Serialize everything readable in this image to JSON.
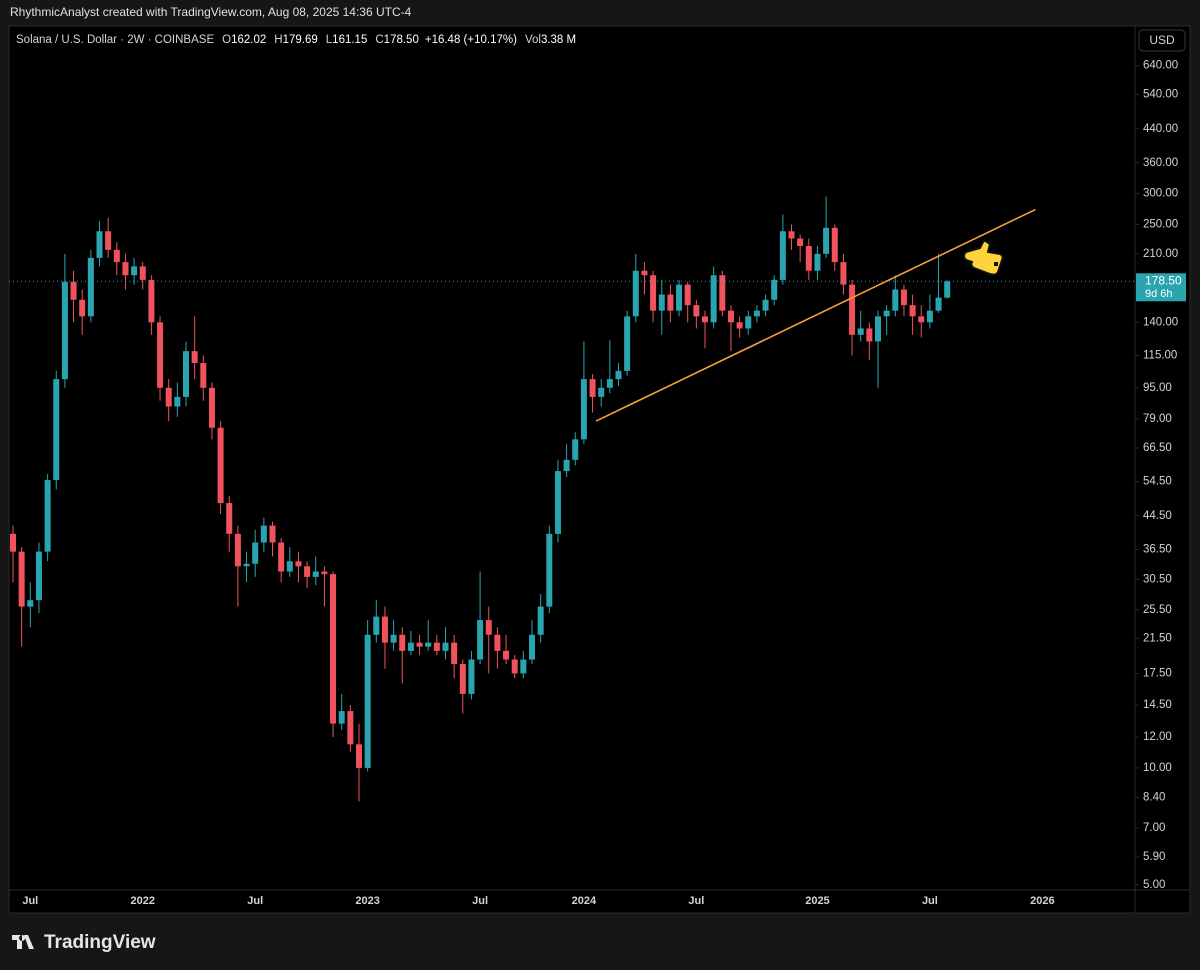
{
  "header": "RhythmicAnalyst created with TradingView.com, Aug 08, 2025 14:36 UTC-4",
  "brand": "TradingView",
  "currency_button": "USD",
  "chart_data": {
    "type": "candlestick",
    "title": "Solana / U.S. Dollar · 2W · COINBASE",
    "legend_keys": [
      "O",
      "H",
      "L",
      "C",
      "Vol"
    ],
    "change": "+16.48 (+10.17%)",
    "volume": "3.38 M",
    "last_price_label": "178.50",
    "countdown": "9d 6h",
    "up_color": "#2aa5b0",
    "down_color": "#f0525e",
    "log_scale": true,
    "grid": false,
    "ylim": [
      4.26,
      800
    ],
    "yticks": [
      {
        "value": 640,
        "label": "640.00"
      },
      {
        "value": 540,
        "label": "540.00"
      },
      {
        "value": 440,
        "label": "440.00"
      },
      {
        "value": 360,
        "label": "360.00"
      },
      {
        "value": 300,
        "label": "300.00"
      },
      {
        "value": 250,
        "label": "250.00"
      },
      {
        "value": 210,
        "label": "210.00"
      },
      {
        "value": 140,
        "label": "140.00"
      },
      {
        "value": 115,
        "label": "115.00"
      },
      {
        "value": 95,
        "label": "95.00"
      },
      {
        "value": 79,
        "label": "79.00"
      },
      {
        "value": 66.5,
        "label": "66.50"
      },
      {
        "value": 54.5,
        "label": "54.50"
      },
      {
        "value": 44.5,
        "label": "44.50"
      },
      {
        "value": 36.5,
        "label": "36.50"
      },
      {
        "value": 30.5,
        "label": "30.50"
      },
      {
        "value": 25.5,
        "label": "25.50"
      },
      {
        "value": 21.5,
        "label": "21.50"
      },
      {
        "value": 17.5,
        "label": "17.50"
      },
      {
        "value": 14.5,
        "label": "14.50"
      },
      {
        "value": 12,
        "label": "12.00"
      },
      {
        "value": 10,
        "label": "10.00"
      },
      {
        "value": 8.4,
        "label": "8.40"
      },
      {
        "value": 7,
        "label": "7.00"
      },
      {
        "value": 5.9,
        "label": "5.90"
      },
      {
        "value": 5,
        "label": "5.00"
      }
    ],
    "categories": [
      null,
      null,
      "Jul",
      null,
      null,
      null,
      null,
      null,
      null,
      null,
      null,
      null,
      null,
      null,
      null,
      "2022",
      null,
      null,
      null,
      null,
      null,
      null,
      null,
      null,
      null,
      null,
      null,
      null,
      "Jul",
      null,
      null,
      null,
      null,
      null,
      null,
      null,
      null,
      null,
      null,
      null,
      null,
      "2023",
      null,
      null,
      null,
      null,
      null,
      null,
      null,
      null,
      null,
      null,
      null,
      null,
      "Jul",
      null,
      null,
      null,
      null,
      null,
      null,
      null,
      null,
      null,
      null,
      null,
      "2024",
      null,
      null,
      null,
      null,
      null,
      null,
      null,
      null,
      null,
      null,
      null,
      null,
      "Jul",
      null,
      null,
      null,
      null,
      null,
      null,
      null,
      null,
      null,
      null,
      null,
      null,
      null,
      "2025",
      null,
      null,
      null,
      null,
      null,
      null,
      null,
      null,
      null,
      null,
      null,
      null,
      "Jul",
      null,
      null,
      null,
      null,
      null,
      null,
      null,
      null,
      null,
      null,
      null,
      null,
      "2026"
    ],
    "open": [
      40,
      36,
      26,
      27,
      36,
      55,
      100,
      178,
      160,
      145,
      205,
      240,
      215,
      200,
      185,
      195,
      180,
      140,
      95,
      85,
      90,
      118,
      110,
      95,
      75,
      48,
      40,
      33,
      33.5,
      38,
      42,
      38,
      32,
      34,
      33,
      31,
      32,
      31.5,
      13,
      14,
      11.5,
      10,
      22,
      24.5,
      21,
      22,
      20,
      21,
      20.5,
      21,
      20,
      21,
      18.5,
      15.5,
      19,
      24,
      22,
      20,
      19,
      17.5,
      19,
      22,
      26,
      40,
      58,
      62,
      70,
      100,
      90,
      95,
      100,
      105,
      145,
      190,
      185,
      150,
      165,
      150,
      175,
      155,
      145,
      140,
      185,
      150,
      140,
      135,
      145,
      150,
      160,
      180,
      240,
      230,
      220,
      190,
      210,
      245,
      200,
      175,
      130,
      135,
      125,
      145,
      150,
      170,
      155,
      145,
      140,
      150,
      162.02,
      null,
      null,
      null,
      null,
      null,
      null,
      null,
      null,
      null,
      null,
      null
    ],
    "high": [
      42,
      37,
      30,
      38,
      57,
      105,
      210,
      190,
      170,
      215,
      255,
      260,
      225,
      210,
      205,
      200,
      185,
      145,
      100,
      98,
      125,
      145,
      115,
      98,
      78,
      50,
      42,
      36,
      41,
      44,
      43,
      39,
      37,
      36,
      34,
      35,
      33,
      32,
      15.5,
      14.5,
      13,
      24,
      27,
      26,
      24,
      23,
      22.5,
      22,
      24,
      22,
      23,
      22,
      19,
      20,
      32,
      26,
      23,
      22,
      19.5,
      20,
      24,
      28,
      42,
      62,
      68,
      73,
      125,
      103,
      100,
      126,
      110,
      150,
      210,
      200,
      190,
      180,
      175,
      180,
      178,
      160,
      150,
      195,
      190,
      155,
      145,
      150,
      155,
      165,
      185,
      265,
      250,
      235,
      230,
      220,
      295,
      250,
      210,
      180,
      150,
      140,
      150,
      155,
      185,
      175,
      165,
      155,
      165,
      210,
      179.69,
      null,
      null,
      null,
      null,
      null,
      null,
      null,
      null,
      null,
      null,
      null
    ],
    "low": [
      30,
      20.5,
      23,
      25,
      34,
      52,
      95,
      140,
      130,
      140,
      195,
      205,
      185,
      170,
      175,
      170,
      130,
      88,
      78,
      80,
      85,
      100,
      88,
      70,
      45,
      36,
      26,
      30,
      31,
      36,
      35,
      30,
      31,
      30,
      29,
      29.5,
      26,
      12,
      12.5,
      11,
      8.2,
      9.8,
      21,
      18,
      20,
      16.5,
      19.5,
      19.5,
      20,
      19.5,
      19,
      17,
      13.8,
      15,
      18.5,
      17.5,
      18,
      18.5,
      17,
      17,
      18.5,
      21,
      25,
      38,
      56,
      60,
      68,
      82,
      85,
      92,
      96,
      102,
      140,
      165,
      140,
      130,
      140,
      145,
      140,
      135,
      120,
      135,
      145,
      118,
      128,
      130,
      140,
      145,
      155,
      175,
      215,
      200,
      180,
      180,
      205,
      190,
      165,
      115,
      125,
      112,
      95,
      130,
      145,
      145,
      130,
      128,
      135,
      148,
      161.15,
      null,
      null,
      null,
      null,
      null,
      null,
      null,
      null,
      null,
      null,
      null
    ],
    "close": [
      36,
      26,
      27,
      36,
      55,
      100,
      178,
      160,
      145,
      205,
      240,
      215,
      200,
      185,
      195,
      180,
      140,
      95,
      85,
      90,
      118,
      110,
      95,
      75,
      48,
      40,
      33,
      33.5,
      38,
      42,
      38,
      32,
      34,
      33,
      31,
      32,
      31.5,
      13,
      14,
      11.5,
      10,
      22,
      24.5,
      21,
      22,
      20,
      21,
      20.5,
      21,
      20,
      21,
      18.5,
      15.5,
      19,
      24,
      22,
      20,
      19,
      17.5,
      19,
      22,
      26,
      40,
      58,
      62,
      70,
      100,
      90,
      95,
      100,
      105,
      145,
      190,
      185,
      150,
      165,
      150,
      175,
      155,
      145,
      140,
      185,
      150,
      140,
      135,
      145,
      150,
      160,
      180,
      240,
      230,
      220,
      190,
      210,
      245,
      200,
      175,
      130,
      135,
      125,
      145,
      150,
      170,
      155,
      145,
      140,
      150,
      162.02,
      178.5,
      null,
      null,
      null,
      null,
      null,
      null,
      null,
      null,
      null,
      null,
      null
    ],
    "trendline": {
      "color": "#f5a03a",
      "x": [
        67.4,
        118.2
      ],
      "values": [
        78,
        273
      ]
    }
  }
}
